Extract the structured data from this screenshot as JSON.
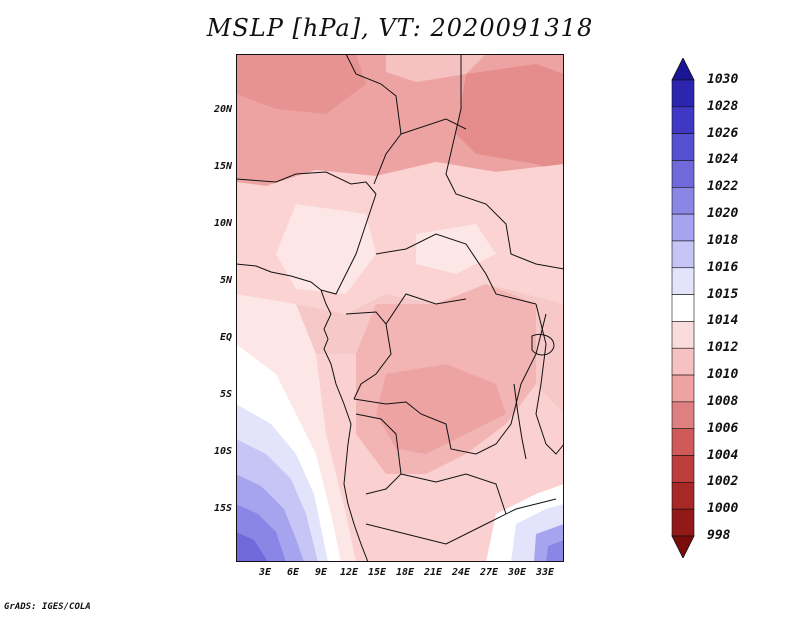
{
  "title": "MSLP [hPa], VT: 2020091318",
  "credit": "GrADS: IGES/COLA",
  "lat_labels": [
    "20N",
    "15N",
    "10N",
    "5N",
    "EQ",
    "5S",
    "10S",
    "15S"
  ],
  "lon_labels": [
    "3E",
    "6E",
    "9E",
    "12E",
    "15E",
    "18E",
    "21E",
    "24E",
    "27E",
    "30E",
    "33E"
  ],
  "colorbar": {
    "labels": [
      "1030",
      "1028",
      "1026",
      "1024",
      "1022",
      "1020",
      "1018",
      "1016",
      "1015",
      "1014",
      "1012",
      "1010",
      "1008",
      "1006",
      "1004",
      "1002",
      "1000",
      "998"
    ],
    "colors": [
      "#1a1496",
      "#2b25b0",
      "#3f38c4",
      "#5550d2",
      "#6f69dc",
      "#8a86e6",
      "#a6a3ef",
      "#c6c5f6",
      "#e3e3fb",
      "#ffffff",
      "#fbdcdc",
      "#f6c1c1",
      "#eea3a3",
      "#e07f7f",
      "#d05a5a",
      "#bd3c3c",
      "#a82727",
      "#931818",
      "#7a0c0c"
    ]
  }
}
